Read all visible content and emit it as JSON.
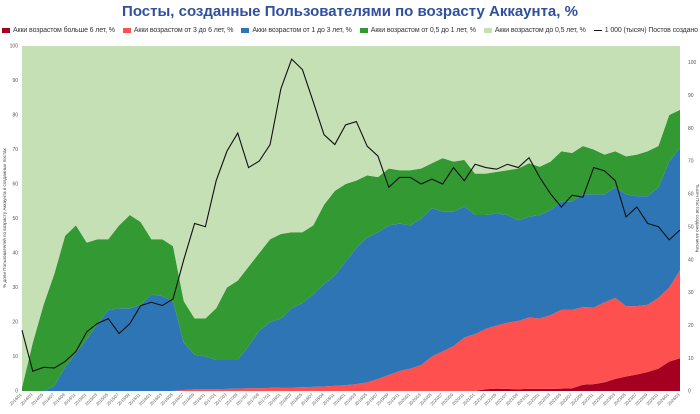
{
  "chart_data": {
    "type": "area",
    "title": "Посты, созданные Пользователями по возрасту Аккаунта, %",
    "ylabel": "% доли Пользователей по возрасту Аккаунта в созданных постах",
    "y2label": "Тысяч Постов создано за месяц",
    "ylim": [
      0,
      100
    ],
    "y2lim": [
      0,
      105
    ],
    "yticks": [
      "0",
      "10",
      "20",
      "30",
      "40",
      "50",
      "60",
      "70",
      "80",
      "90",
      "100"
    ],
    "y2ticks": [
      "0",
      "10",
      "20",
      "30",
      "40",
      "50",
      "60",
      "70",
      "80",
      "90",
      "100"
    ],
    "legend_position": "top",
    "categories": [
      "2014/01",
      "2014/03",
      "2014/05",
      "2014/07",
      "2014/09",
      "2014/11",
      "2015/01",
      "2015/03",
      "2015/05",
      "2015/07",
      "2015/09",
      "2015/11",
      "2016/01",
      "2016/03",
      "2016/05",
      "2016/07",
      "2016/09",
      "2016/11",
      "2017/01",
      "2017/03",
      "2017/05",
      "2017/07",
      "2017/09",
      "2017/11",
      "2018/01",
      "2018/03",
      "2018/05",
      "2018/07",
      "2018/09",
      "2018/11",
      "2019/01",
      "2019/03",
      "2019/05",
      "2019/07",
      "2019/09",
      "2019/11",
      "2020/01",
      "2020/03",
      "2020/05",
      "2020/07",
      "2020/09",
      "2020/11",
      "2021/01",
      "2021/03",
      "2021/05",
      "2021/07",
      "2021/09",
      "2021/11",
      "2022/01",
      "2022/03",
      "2022/05",
      "2022/07",
      "2022/09",
      "2022/11",
      "2023/01",
      "2023/03",
      "2023/05",
      "2023/07",
      "2023/09",
      "2023/11",
      "2024/01",
      "2024/03"
    ],
    "series": [
      {
        "name": "Акки возрастом больше 6 лет, %",
        "color": "#a50021",
        "type": "stacked-area",
        "values": [
          0,
          0,
          0,
          0,
          0,
          0,
          0,
          0,
          0,
          0,
          0,
          0,
          0,
          0,
          0,
          0,
          0,
          0,
          0,
          0,
          0,
          0,
          0,
          0,
          0,
          0,
          0,
          0,
          0,
          0,
          0,
          0,
          0,
          0,
          0,
          0,
          0,
          0,
          0,
          0,
          0,
          0,
          0,
          0.5,
          0.7,
          0.6,
          0.5,
          0.6,
          0.6,
          0.6,
          0.7,
          0.8,
          1.8,
          2,
          2.5,
          3.5,
          4.2,
          4.8,
          5.5,
          6.5,
          8.5,
          9.5
        ]
      },
      {
        "name": "Акки возрастом от 3 до 6 лет, %",
        "color": "#ff5050",
        "type": "stacked-area",
        "values": [
          0,
          0,
          0,
          0,
          0,
          0,
          0,
          0,
          0,
          0,
          0,
          0,
          0,
          0,
          0,
          0.3,
          0.5,
          0.5,
          0.5,
          0.6,
          0.7,
          0.8,
          0.8,
          0.9,
          1,
          1,
          1.1,
          1.2,
          1.3,
          1.5,
          1.7,
          2,
          2.5,
          3.5,
          4.6,
          5.8,
          6.5,
          7.5,
          10,
          11.5,
          13,
          15.5,
          16.5,
          17.5,
          18.3,
          19.2,
          19.8,
          20.7,
          20.4,
          21.4,
          22.8,
          22.7,
          22.5,
          22.2,
          23.2,
          23.5,
          20.4,
          19.8,
          19.5,
          20.5,
          21.5,
          25.5
        ]
      },
      {
        "name": "Акки возрастом от 1 до 3 лет, %",
        "color": "#2e75b6",
        "type": "stacked-area",
        "values": [
          0,
          0,
          0,
          1.5,
          7,
          11,
          15,
          19.5,
          23.5,
          24,
          24,
          25,
          28,
          27.5,
          26,
          13.7,
          10,
          9.5,
          8.5,
          8.4,
          8.3,
          12.2,
          16.7,
          19.1,
          20,
          23,
          24.4,
          26.8,
          29.7,
          32,
          35.8,
          39.5,
          42,
          42.5,
          43.4,
          42.7,
          41.5,
          42.5,
          43,
          40.5,
          39,
          38,
          34.5,
          33,
          32.5,
          31.2,
          29.2,
          29.2,
          30,
          30.5,
          31.5,
          31.5,
          32.7,
          32.8,
          31.3,
          32,
          32.4,
          31.9,
          31.5,
          32,
          36.5,
          35.5
        ]
      },
      {
        "name": "Акки возрастом от 0,5 до 1 лет, %",
        "color": "#339933",
        "type": "stacked-area",
        "values": [
          1,
          14,
          25,
          32.5,
          38,
          37,
          28,
          24.5,
          20.5,
          24,
          27,
          24,
          16,
          16.5,
          16,
          12,
          10.5,
          11,
          15,
          21,
          23,
          23,
          22.5,
          24,
          24.5,
          22,
          20.5,
          20,
          23,
          24.5,
          22.5,
          19.5,
          18,
          16,
          16.5,
          15.5,
          16,
          14.5,
          13,
          15.5,
          14.5,
          13.5,
          12,
          12,
          12,
          13,
          15,
          15.5,
          14,
          14,
          14.5,
          14,
          14,
          13,
          11.5,
          10.5,
          11,
          12,
          13,
          12,
          13.5,
          11
        ]
      },
      {
        "name": "Акки возрастом до 0,5 лет, %",
        "color": "#c5e0b4",
        "type": "stacked-area",
        "values": [
          99,
          86,
          75,
          66,
          55,
          52,
          57,
          56,
          56,
          52,
          49,
          51,
          56,
          56,
          58,
          74,
          79,
          79,
          76,
          70,
          68,
          64,
          60,
          56,
          54.5,
          54,
          54,
          52,
          46,
          42,
          40,
          39,
          37.5,
          38,
          35.5,
          36,
          36,
          35.5,
          34,
          32.5,
          33.5,
          33,
          37,
          37,
          36.5,
          36,
          35.5,
          34,
          35,
          33.5,
          30.5,
          31,
          29,
          30,
          31.5,
          30.5,
          32,
          31.5,
          30.5,
          29,
          20,
          18.5
        ]
      },
      {
        "name": "1 000 (тысяч) Постов создано",
        "color": "#111111",
        "type": "line",
        "axis": "right",
        "values": [
          18.5,
          6,
          7.2,
          7,
          9,
          12,
          18,
          20.6,
          22,
          17.5,
          20.5,
          26,
          27,
          26,
          28,
          40,
          51,
          50,
          64,
          73,
          78.5,
          68,
          70,
          75,
          92,
          101,
          97.8,
          88,
          78,
          75,
          81,
          82,
          74.5,
          71.5,
          62,
          65,
          65,
          63,
          64.5,
          63,
          68,
          64,
          69,
          68,
          67.5,
          69,
          68,
          71,
          65,
          60,
          56,
          59.6,
          59,
          68,
          67,
          64,
          53,
          56,
          51,
          50,
          46,
          49
        ]
      }
    ]
  }
}
